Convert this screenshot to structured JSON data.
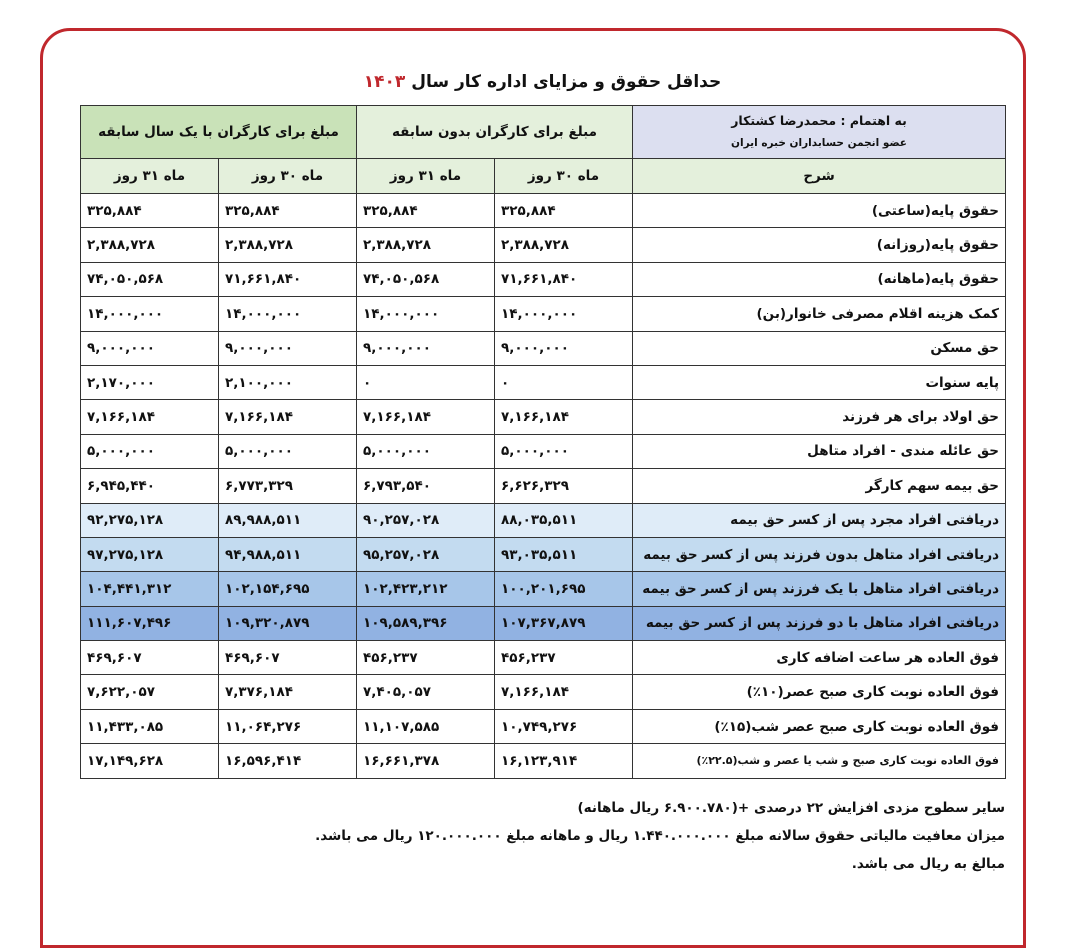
{
  "title": {
    "text": "حداقل حقوق و مزایای اداره کار سال",
    "year": "۱۴۰۳"
  },
  "header": {
    "credit": "به اهتمام : محمدرضا کشتکار",
    "affiliation": "عضو انجمن حسابداران خبره ایران",
    "groups": [
      "مبلغ برای کارگران بدون سابقه",
      "مبلغ برای کارگران با یک سال سابقه"
    ],
    "subheaders": [
      "شرح",
      "ماه ۳۰ روز",
      "ماه ۳۱ روز",
      "ماه ۳۰ روز",
      "ماه ۳۱ روز"
    ]
  },
  "table": {
    "rows": [
      [
        "حقوق پایه(ساعتی)",
        "۳۲۵,۸۸۴",
        "۳۲۵,۸۸۴",
        "۳۲۵,۸۸۴",
        "۳۲۵,۸۸۴"
      ],
      [
        "حقوق پایه(روزانه)",
        "۲,۳۸۸,۷۲۸",
        "۲,۳۸۸,۷۲۸",
        "۲,۳۸۸,۷۲۸",
        "۲,۳۸۸,۷۲۸"
      ],
      [
        "حقوق پایه(ماهانه)",
        "۷۱,۶۶۱,۸۴۰",
        "۷۴,۰۵۰,۵۶۸",
        "۷۱,۶۶۱,۸۴۰",
        "۷۴,۰۵۰,۵۶۸"
      ],
      [
        "کمک هزینه اقلام مصرفی خانوار(بن)",
        "۱۴,۰۰۰,۰۰۰",
        "۱۴,۰۰۰,۰۰۰",
        "۱۴,۰۰۰,۰۰۰",
        "۱۴,۰۰۰,۰۰۰"
      ],
      [
        "حق مسکن",
        "۹,۰۰۰,۰۰۰",
        "۹,۰۰۰,۰۰۰",
        "۹,۰۰۰,۰۰۰",
        "۹,۰۰۰,۰۰۰"
      ],
      [
        "پایه سنوات",
        "۰",
        "۰",
        "۲,۱۰۰,۰۰۰",
        "۲,۱۷۰,۰۰۰"
      ],
      [
        "حق اولاد برای هر فرزند",
        "۷,۱۶۶,۱۸۴",
        "۷,۱۶۶,۱۸۴",
        "۷,۱۶۶,۱۸۴",
        "۷,۱۶۶,۱۸۴"
      ],
      [
        "حق عائله مندی - افراد متاهل",
        "۵,۰۰۰,۰۰۰",
        "۵,۰۰۰,۰۰۰",
        "۵,۰۰۰,۰۰۰",
        "۵,۰۰۰,۰۰۰"
      ],
      [
        "حق بیمه سهم کارگر",
        "۶,۶۲۶,۳۲۹",
        "۶,۷۹۳,۵۴۰",
        "۶,۷۷۳,۳۲۹",
        "۶,۹۴۵,۴۴۰"
      ],
      [
        "دریافتی افراد مجرد پس از کسر حق بیمه",
        "۸۸,۰۳۵,۵۱۱",
        "۹۰,۲۵۷,۰۲۸",
        "۸۹,۹۸۸,۵۱۱",
        "۹۲,۲۷۵,۱۲۸"
      ],
      [
        "دریافتی افراد متاهل بدون فرزند پس از کسر حق بیمه",
        "۹۳,۰۳۵,۵۱۱",
        "۹۵,۲۵۷,۰۲۸",
        "۹۴,۹۸۸,۵۱۱",
        "۹۷,۲۷۵,۱۲۸"
      ],
      [
        "دریافتی افراد متاهل با یک فرزند پس از کسر حق بیمه",
        "۱۰۰,۲۰۱,۶۹۵",
        "۱۰۲,۴۲۳,۲۱۲",
        "۱۰۲,۱۵۴,۶۹۵",
        "۱۰۴,۴۴۱,۳۱۲"
      ],
      [
        "دریافتی افراد متاهل با دو فرزند پس از کسر حق بیمه",
        "۱۰۷,۳۶۷,۸۷۹",
        "۱۰۹,۵۸۹,۳۹۶",
        "۱۰۹,۳۲۰,۸۷۹",
        "۱۱۱,۶۰۷,۴۹۶"
      ],
      [
        "فوق العاده هر ساعت اضافه کاری",
        "۴۵۶,۲۳۷",
        "۴۵۶,۲۳۷",
        "۴۶۹,۶۰۷",
        "۴۶۹,۶۰۷"
      ],
      [
        "فوق العاده نوبت کاری صبح عصر(۱۰٪)",
        "۷,۱۶۶,۱۸۴",
        "۷,۴۰۵,۰۵۷",
        "۷,۳۷۶,۱۸۴",
        "۷,۶۲۲,۰۵۷"
      ],
      [
        "فوق العاده نوبت کاری صبح عصر شب(۱۵٪)",
        "۱۰,۷۴۹,۲۷۶",
        "۱۱,۱۰۷,۵۸۵",
        "۱۱,۰۶۴,۲۷۶",
        "۱۱,۴۳۳,۰۸۵"
      ],
      [
        "فوق العاده نوبت کاری صبح و شب یا عصر و شب(۲۲.۵٪)",
        "۱۶,۱۲۳,۹۱۴",
        "۱۶,۶۶۱,۳۷۸",
        "۱۶,۵۹۶,۴۱۴",
        "۱۷,۱۴۹,۶۲۸"
      ]
    ]
  },
  "notes": [
    "سایر سطوح مزدی افزایش ۲۲ درصدی +(۶.۹۰۰.۷۸۰ ریال ماهانه)",
    "میزان معافیت مالیاتی حقوق سالانه مبلغ ۱.۴۴۰.۰۰۰.۰۰۰ ریال و ماهانه مبلغ ۱۲۰.۰۰۰.۰۰۰ ریال می باشد.",
    "مبالغ به ریال می باشد."
  ]
}
